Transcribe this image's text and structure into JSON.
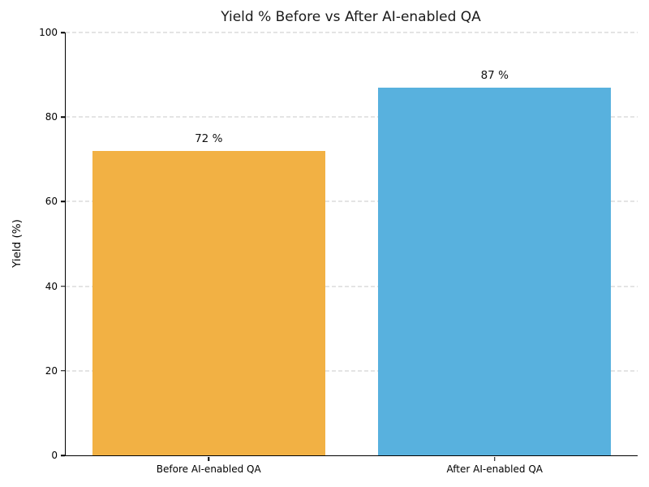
{
  "chart_data": {
    "type": "bar",
    "title": "Yield % Before vs After AI-enabled QA",
    "categories": [
      "Before AI-enabled QA",
      "After AI-enabled QA"
    ],
    "values": [
      72,
      87
    ],
    "value_labels": [
      "72 %",
      "87 %"
    ],
    "bar_colors": [
      "#F2B144",
      "#58B1DE"
    ],
    "xlabel": "",
    "ylabel": "Yield (%)",
    "ylim": [
      0,
      100
    ],
    "yticks": [
      0,
      20,
      40,
      60,
      80,
      100
    ],
    "grid": "horizontal dashed",
    "legend": "none",
    "bar_width_pct_of_category": 81.4
  },
  "colors": {
    "background": "#ffffff",
    "grid": "#c9c9c9",
    "axis": "#000000",
    "title_text": "#1a1a1a",
    "tick_text": "#000000"
  }
}
